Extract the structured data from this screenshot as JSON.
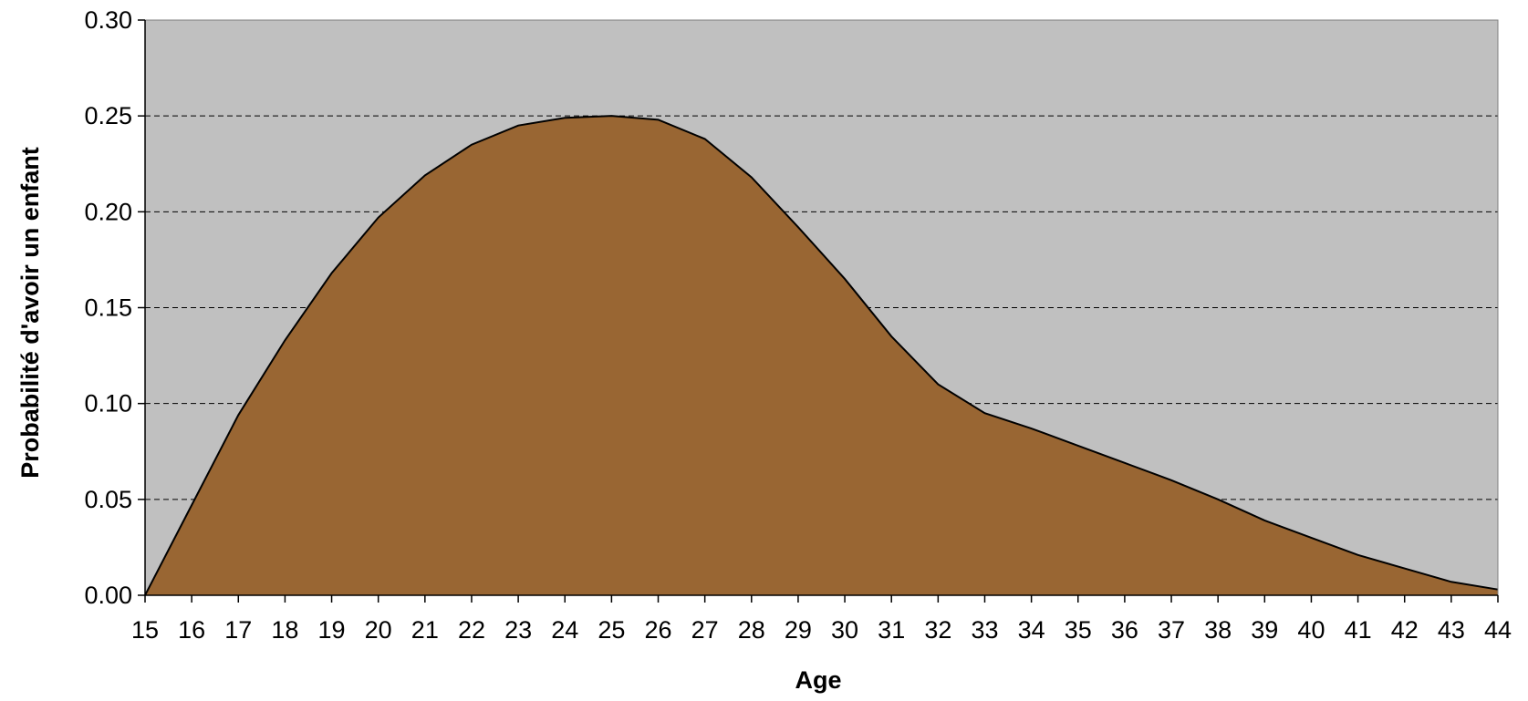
{
  "chart_data": {
    "type": "area",
    "title": "",
    "xlabel": "Age",
    "ylabel": "Probabilité d'avoir un enfant",
    "x": [
      15,
      16,
      17,
      18,
      19,
      20,
      21,
      22,
      23,
      24,
      25,
      26,
      27,
      28,
      29,
      30,
      31,
      32,
      33,
      34,
      35,
      36,
      37,
      38,
      39,
      40,
      41,
      42,
      43,
      44
    ],
    "series": [
      {
        "values": [
          0.0,
          0.047,
          0.094,
          0.133,
          0.168,
          0.197,
          0.219,
          0.235,
          0.245,
          0.249,
          0.25,
          0.248,
          0.238,
          0.218,
          0.192,
          0.165,
          0.135,
          0.11,
          0.095,
          0.087,
          0.078,
          0.069,
          0.06,
          0.05,
          0.039,
          0.03,
          0.021,
          0.014,
          0.007,
          0.003
        ]
      }
    ],
    "xlim": [
      15,
      44
    ],
    "ylim": [
      0,
      0.3
    ],
    "yticks": [
      "0.00",
      "0.05",
      "0.10",
      "0.15",
      "0.20",
      "0.25",
      "0.30"
    ],
    "grid": "horizontal dashed",
    "legend": "none",
    "colors": {
      "plot_background": "#c0c0c0",
      "area_fill": "#996633",
      "area_line": "#000000",
      "grid": "#000000"
    }
  }
}
